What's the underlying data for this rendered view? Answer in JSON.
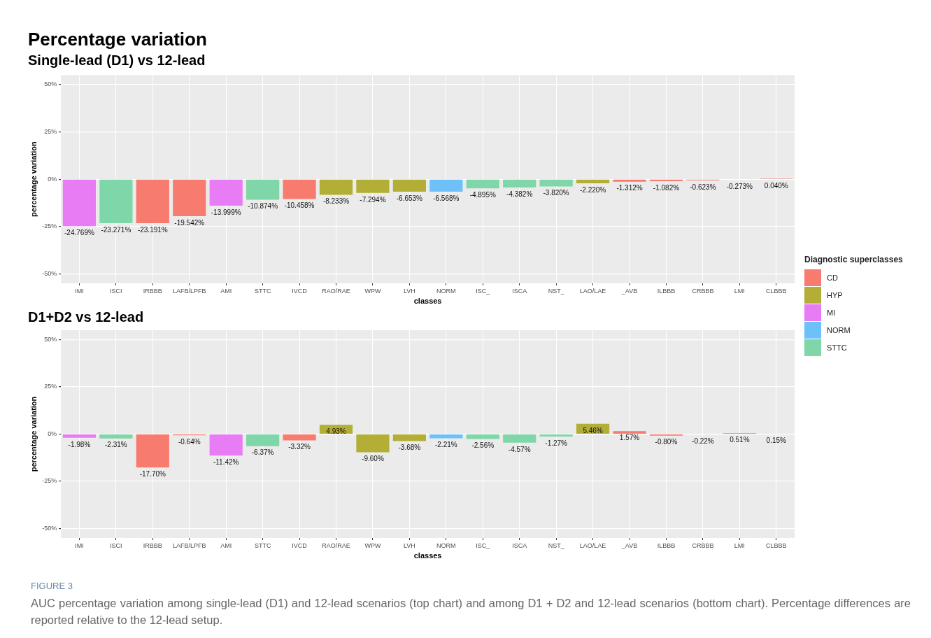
{
  "chart_data": [
    {
      "type": "bar",
      "title": "Percentage variation",
      "subtitle": "Single-lead (D1) vs 12-lead",
      "xlabel": "classes",
      "ylabel": "percentage variation",
      "legend_title": "Diagnostic superclasses",
      "legend": "right",
      "grid": true,
      "categories": [
        "IMI",
        "ISCI",
        "IRBBB",
        "LAFB/LPFB",
        "AMI",
        "STTC",
        "IVCD",
        "RAO/RAE",
        "WPW",
        "LVH",
        "NORM",
        "ISC_",
        "ISCA",
        "NST_",
        "LAO/LAE",
        "_AVB",
        "ILBBB",
        "CRBBB",
        "LMI",
        "CLBBB"
      ],
      "ylim": [
        -55,
        55
      ],
      "yticks": [
        {
          "value": -50,
          "label": "-50%"
        },
        {
          "value": -25,
          "label": "-25%"
        },
        {
          "value": 0,
          "label": "0%"
        },
        {
          "value": 25,
          "label": "25%"
        },
        {
          "value": 50,
          "label": "50%"
        }
      ],
      "series": [
        {
          "name": "CD",
          "color": "#f87b70",
          "values": [
            null,
            null,
            -23.191,
            -19.542,
            null,
            null,
            -10.458,
            null,
            null,
            null,
            null,
            null,
            null,
            null,
            null,
            -1.312,
            -1.082,
            -0.623,
            null,
            0.04
          ],
          "value_labels": [
            null,
            null,
            "-23.191%",
            "-19.542%",
            null,
            null,
            "-10.458%",
            null,
            null,
            null,
            null,
            null,
            null,
            null,
            null,
            "-1.312%",
            "-1.082%",
            "-0.623%",
            null,
            "0.040%"
          ]
        },
        {
          "name": "HYP",
          "color": "#b3ae36",
          "values": [
            null,
            null,
            null,
            null,
            null,
            null,
            null,
            -8.233,
            -7.294,
            -6.653,
            null,
            null,
            null,
            null,
            -2.22,
            null,
            null,
            null,
            null,
            null
          ],
          "value_labels": [
            null,
            null,
            null,
            null,
            null,
            null,
            null,
            "-8.233%",
            "-7.294%",
            "-6.653%",
            null,
            null,
            null,
            null,
            "-2.220%",
            null,
            null,
            null,
            null,
            null
          ]
        },
        {
          "name": "MI",
          "color": "#e87cf4",
          "values": [
            -24.769,
            null,
            null,
            null,
            -13.999,
            null,
            null,
            null,
            null,
            null,
            null,
            null,
            null,
            null,
            null,
            null,
            null,
            null,
            -0.273,
            null
          ],
          "value_labels": [
            "-24.769%",
            null,
            null,
            null,
            "-13.999%",
            null,
            null,
            null,
            null,
            null,
            null,
            null,
            null,
            null,
            null,
            null,
            null,
            null,
            "-0.273%",
            null
          ]
        },
        {
          "name": "NORM",
          "color": "#6ec1f8",
          "values": [
            null,
            null,
            null,
            null,
            null,
            null,
            null,
            null,
            null,
            null,
            -6.568,
            null,
            null,
            null,
            null,
            null,
            null,
            null,
            null,
            null
          ],
          "value_labels": [
            null,
            null,
            null,
            null,
            null,
            null,
            null,
            null,
            null,
            null,
            "-6.568%",
            null,
            null,
            null,
            null,
            null,
            null,
            null,
            null,
            null
          ]
        },
        {
          "name": "STTC",
          "color": "#7fd6a8",
          "values": [
            null,
            -23.271,
            null,
            null,
            null,
            -10.874,
            null,
            null,
            null,
            null,
            null,
            -4.895,
            -4.382,
            -3.82,
            null,
            null,
            null,
            null,
            null,
            null
          ],
          "value_labels": [
            null,
            "-23.271%",
            null,
            null,
            null,
            "-10.874%",
            null,
            null,
            null,
            null,
            null,
            "-4.895%",
            "-4.382%",
            "-3.820%",
            null,
            null,
            null,
            null,
            null,
            null
          ]
        }
      ]
    },
    {
      "type": "bar",
      "title": "D1+D2 vs 12-lead",
      "xlabel": "classes",
      "ylabel": "percentage variation",
      "grid": true,
      "categories": [
        "IMI",
        "ISCI",
        "IRBBB",
        "LAFB/LPFB",
        "AMI",
        "STTC",
        "IVCD",
        "RAO/RAE",
        "WPW",
        "LVH",
        "NORM",
        "ISC_",
        "ISCA",
        "NST_",
        "LAO/LAE",
        "_AVB",
        "ILBBB",
        "CRBBB",
        "LMI",
        "CLBBB"
      ],
      "ylim": [
        -55,
        55
      ],
      "yticks": [
        {
          "value": -50,
          "label": "-50%"
        },
        {
          "value": -25,
          "label": "-25%"
        },
        {
          "value": 0,
          "label": "0%"
        },
        {
          "value": 25,
          "label": "25%"
        },
        {
          "value": 50,
          "label": "50%"
        }
      ],
      "series": [
        {
          "color": "#f87b70",
          "values": [
            null,
            null,
            -17.7,
            -0.64,
            null,
            null,
            -3.32,
            null,
            null,
            null,
            null,
            null,
            null,
            null,
            null,
            1.57,
            -0.8,
            -0.22,
            null,
            0.15
          ],
          "value_labels": [
            null,
            null,
            "-17.70%",
            "-0.64%",
            null,
            null,
            "-3.32%",
            null,
            null,
            null,
            null,
            null,
            null,
            null,
            null,
            "1.57%",
            "-0.80%",
            "-0.22%",
            null,
            "0.15%"
          ]
        },
        {
          "color": "#b3ae36",
          "values": [
            null,
            null,
            null,
            null,
            null,
            null,
            null,
            4.93,
            -9.6,
            -3.68,
            null,
            null,
            null,
            null,
            5.46,
            null,
            null,
            null,
            null,
            null
          ],
          "value_labels": [
            null,
            null,
            null,
            null,
            null,
            null,
            null,
            "4.93%",
            "-9.60%",
            "-3.68%",
            null,
            null,
            null,
            null,
            "5.46%",
            null,
            null,
            null,
            null,
            null
          ]
        },
        {
          "color": "#e87cf4",
          "values": [
            -1.98,
            null,
            null,
            null,
            -11.42,
            null,
            null,
            null,
            null,
            null,
            null,
            null,
            null,
            null,
            null,
            null,
            null,
            null,
            0.51,
            null
          ],
          "value_labels": [
            "-1.98%",
            null,
            null,
            null,
            "-11.42%",
            null,
            null,
            null,
            null,
            null,
            null,
            null,
            null,
            null,
            null,
            null,
            null,
            null,
            "0.51%",
            null
          ]
        },
        {
          "color": "#6ec1f8",
          "values": [
            null,
            null,
            null,
            null,
            null,
            null,
            null,
            null,
            null,
            null,
            -2.21,
            null,
            null,
            null,
            null,
            null,
            null,
            null,
            null,
            null
          ],
          "value_labels": [
            null,
            null,
            null,
            null,
            null,
            null,
            null,
            null,
            null,
            null,
            "-2.21%",
            null,
            null,
            null,
            null,
            null,
            null,
            null,
            null,
            null
          ]
        },
        {
          "color": "#7fd6a8",
          "values": [
            null,
            -2.31,
            null,
            null,
            null,
            -6.37,
            null,
            null,
            null,
            null,
            null,
            -2.56,
            -4.57,
            -1.27,
            null,
            null,
            null,
            null,
            null,
            null
          ],
          "value_labels": [
            null,
            "-2.31%",
            null,
            null,
            null,
            "-6.37%",
            null,
            null,
            null,
            null,
            null,
            "-2.56%",
            "-4.57%",
            "-1.27%",
            null,
            null,
            null,
            null,
            null,
            null
          ]
        }
      ],
      "annotations": [
        "FIGURE 3",
        "AUC percentage variation among single-lead (D1) and 12-lead scenarios (top chart) and among D1 + D2 and 12-lead scenarios (bottom chart). Percentage differences are reported relative to the 12-lead setup."
      ]
    }
  ]
}
